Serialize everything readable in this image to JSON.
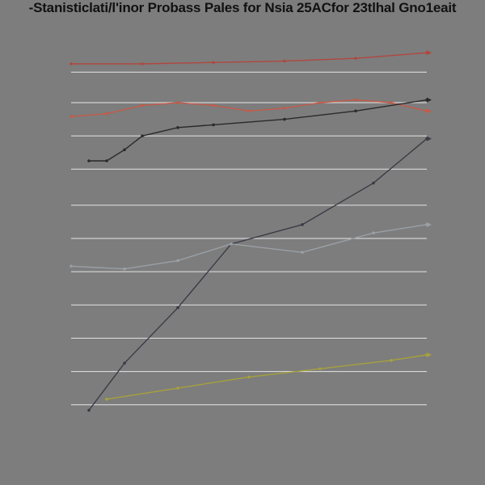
{
  "title": "-Stanisticlati/l'inor Probass Pales for Nsia 25ACfor 23tlhal Gno1eait",
  "colors": {
    "background": "#7d7d7d",
    "gridline": "#e6e6e6",
    "series": [
      "#b0473f",
      "#c65a48",
      "#2a2a2a",
      "#3b3b46",
      "#9aa0a6",
      "#a6a13c"
    ]
  },
  "chart_data": {
    "type": "line",
    "grid": true,
    "xlim": [
      0,
      10
    ],
    "ylim": [
      0,
      14
    ],
    "y_gridlines": [
      1,
      2.2,
      3.4,
      4.6,
      5.8,
      7.0,
      8.2,
      9.5,
      10.7,
      11.9,
      13.0
    ],
    "series": [
      {
        "x": [
          0,
          2,
          4,
          6,
          8,
          10
        ],
        "y": [
          13.3,
          13.3,
          13.35,
          13.4,
          13.5,
          13.7
        ]
      },
      {
        "x": [
          0,
          1,
          2,
          3,
          4,
          5,
          6,
          7,
          8,
          9,
          10
        ],
        "y": [
          11.4,
          11.5,
          11.8,
          11.9,
          11.8,
          11.6,
          11.7,
          11.9,
          12.0,
          11.9,
          11.6
        ]
      },
      {
        "x": [
          0.5,
          1.0,
          1.5,
          2.0,
          3.0,
          4.0,
          6.0,
          8.0,
          10.0
        ],
        "y": [
          9.8,
          9.8,
          10.2,
          10.7,
          11.0,
          11.1,
          11.3,
          11.6,
          12.0
        ]
      },
      {
        "x": [
          0.5,
          1.5,
          3.0,
          4.5,
          6.5,
          8.5,
          10.0
        ],
        "y": [
          0.8,
          2.5,
          4.5,
          6.8,
          7.5,
          9.0,
          10.6
        ]
      },
      {
        "x": [
          0,
          1.5,
          3.0,
          4.5,
          6.5,
          8.5,
          10.0
        ],
        "y": [
          6.0,
          5.9,
          6.2,
          6.8,
          6.5,
          7.2,
          7.5
        ]
      },
      {
        "x": [
          1,
          3,
          5,
          7,
          9,
          10
        ],
        "y": [
          1.2,
          1.6,
          2.0,
          2.3,
          2.6,
          2.8
        ]
      }
    ]
  }
}
